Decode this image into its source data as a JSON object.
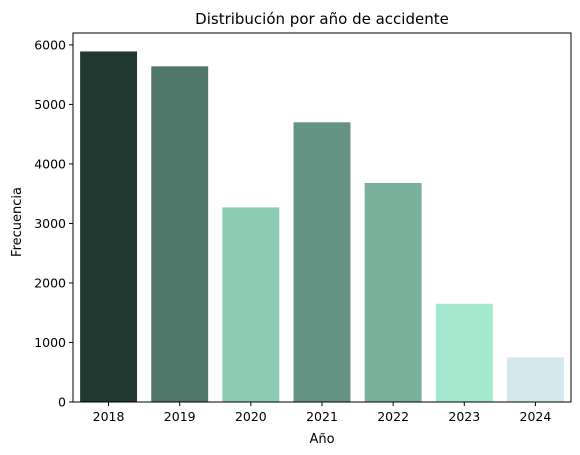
{
  "chart_data": {
    "type": "bar",
    "title": "Distribución por año de accidente",
    "xlabel": "Año",
    "ylabel": "Frecuencia",
    "categories": [
      "2018",
      "2019",
      "2020",
      "2021",
      "2022",
      "2023",
      "2024"
    ],
    "values": [
      5890,
      5640,
      3270,
      4700,
      3680,
      1650,
      750
    ],
    "colors": [
      "#203a32",
      "#4f7769",
      "#8ecbb4",
      "#659383",
      "#79b09b",
      "#a4e8cf",
      "#d3e9ed"
    ],
    "ylim": [
      0,
      6200
    ],
    "yticks": [
      0,
      1000,
      2000,
      3000,
      4000,
      5000,
      6000
    ],
    "grid": false,
    "legend": "none"
  }
}
